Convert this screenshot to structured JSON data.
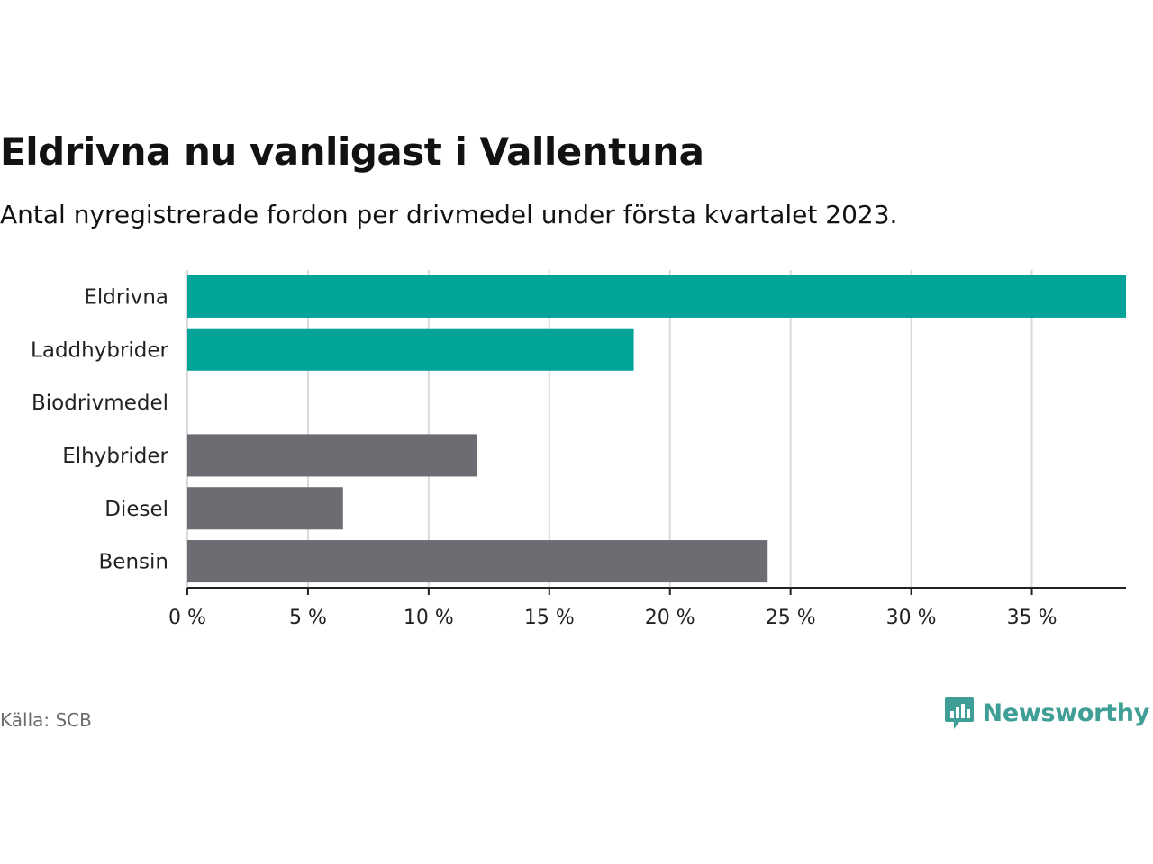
{
  "title": "Eldrivna nu vanligast i Vallentuna",
  "subtitle": "Antal nyregistrerade fordon per drivmedel under första kvartalet 2023.",
  "source": "Källa: SCB",
  "brand": {
    "name": "Newsworthy",
    "logo_icon": "bar-chart-speech-bubble-icon"
  },
  "colors": {
    "highlight": "#02a49a",
    "default": "#6d6c72",
    "grid": "#d9d9d9",
    "axis": "#222222",
    "brand": "#3f9e95"
  },
  "chart_data": {
    "type": "bar",
    "orientation": "horizontal",
    "categories": [
      "Eldrivna",
      "Laddhybrider",
      "Biodrivmedel",
      "Elhybrider",
      "Diesel",
      "Bensin"
    ],
    "values": [
      38.9,
      18.5,
      0,
      12.0,
      6.45,
      24.05
    ],
    "highlighted": [
      true,
      true,
      false,
      false,
      false,
      false
    ],
    "xlim": [
      0,
      38.9
    ],
    "xticks": [
      0,
      5,
      10,
      15,
      20,
      25,
      30,
      35
    ],
    "xtick_labels": [
      "0 %",
      "5 %",
      "10 %",
      "15 %",
      "20 %",
      "25 %",
      "30 %",
      "35 %"
    ],
    "grid": true,
    "xlabel": "",
    "ylabel": ""
  }
}
